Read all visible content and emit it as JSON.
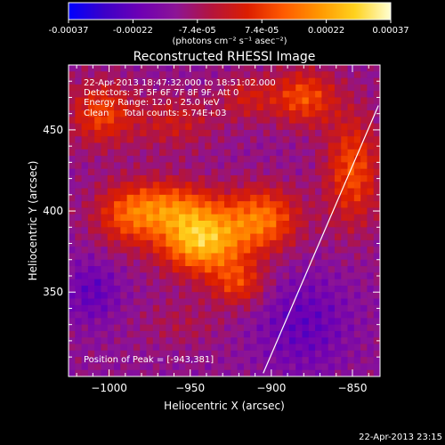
{
  "colors": {
    "background": "#000000",
    "text": "#ffffff",
    "limb": "#ffffff",
    "colormap": [
      "#0000ff",
      "#3c00c8",
      "#6e00b4",
      "#8c1496",
      "#b4143c",
      "#dc1e00",
      "#ff5a00",
      "#ff9600",
      "#ffd21e",
      "#ffffd2"
    ]
  },
  "colorbar": {
    "ticks": [
      "-0.00037",
      "-0.00022",
      "-7.4e-05",
      "7.4e-05",
      "0.00022",
      "0.00037"
    ],
    "unit": "(photons cm⁻² s⁻¹ asec⁻²)"
  },
  "chart_data": {
    "type": "heatmap",
    "title": "Reconstructed RHESSI Image",
    "xlabel": "Heliocentric X (arcsec)",
    "ylabel": "Heliocentric Y (arcsec)",
    "xlim": [
      -1025,
      -833
    ],
    "ylim": [
      298,
      490
    ],
    "x_ticks": [
      {
        "value": -1000,
        "label": "−1000"
      },
      {
        "value": -950,
        "label": "−950"
      },
      {
        "value": -900,
        "label": "−900"
      },
      {
        "value": -850,
        "label": "−850"
      }
    ],
    "y_ticks": [
      {
        "value": 350,
        "label": "350"
      },
      {
        "value": 400,
        "label": "400"
      },
      {
        "value": 450,
        "label": "450"
      }
    ],
    "value_range": [
      -0.00037,
      0.00037
    ],
    "peak": [
      -943,
      381
    ],
    "limb_line": [
      [
        -905,
        300
      ],
      [
        -834,
        465
      ]
    ],
    "blobs": [
      {
        "x": -943,
        "y": 381,
        "sx": 18,
        "sy": 14,
        "amp": 0.00037
      },
      {
        "x": -965,
        "y": 402,
        "sx": 22,
        "sy": 12,
        "amp": 0.00024
      },
      {
        "x": -905,
        "y": 395,
        "sx": 16,
        "sy": 14,
        "amp": 0.00026
      },
      {
        "x": -920,
        "y": 355,
        "sx": 12,
        "sy": 10,
        "amp": 0.00018
      },
      {
        "x": -990,
        "y": 395,
        "sx": 14,
        "sy": 14,
        "amp": 0.00014
      },
      {
        "x": -1005,
        "y": 460,
        "sx": 14,
        "sy": 14,
        "amp": 0.0002
      },
      {
        "x": -960,
        "y": 455,
        "sx": 18,
        "sy": 12,
        "amp": 0.00012
      },
      {
        "x": -880,
        "y": 470,
        "sx": 14,
        "sy": 12,
        "amp": 0.00022
      },
      {
        "x": -850,
        "y": 425,
        "sx": 12,
        "sy": 24,
        "amp": 0.00022
      },
      {
        "x": -915,
        "y": 470,
        "sx": 12,
        "sy": 10,
        "amp": 0.00012
      },
      {
        "x": -955,
        "y": 330,
        "sx": 18,
        "sy": 10,
        "amp": 6e-05
      },
      {
        "x": -1010,
        "y": 350,
        "sx": 12,
        "sy": 14,
        "amp": -0.0001
      },
      {
        "x": -880,
        "y": 330,
        "sx": 20,
        "sy": 22,
        "amp": -0.0001
      }
    ],
    "annotations": [
      "22-Apr-2013 18:47:32.000 to 18:51:02.000",
      "Detectors: 3F 5F 6F 7F 8F 9F, Att 0",
      "Energy Range: 12.0 - 25.0 keV",
      "Clean     Total counts: 5.74E+03",
      "Position of Peak = [-943,381]"
    ]
  },
  "footer": {
    "timestamp": "22-Apr-2013 23:15"
  }
}
